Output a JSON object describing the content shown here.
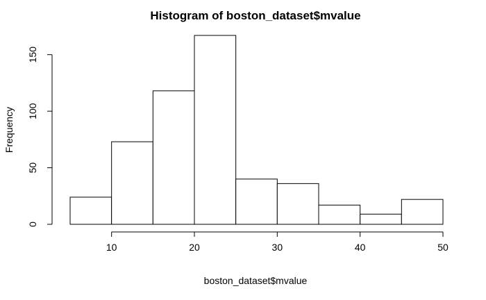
{
  "chart_data": {
    "type": "bar",
    "title": "Histogram of boston_dataset$mvalue",
    "xlabel": "boston_dataset$mvalue",
    "ylabel": "Frequency",
    "bins": [
      {
        "x0": 5,
        "x1": 10,
        "count": 24
      },
      {
        "x0": 10,
        "x1": 15,
        "count": 73
      },
      {
        "x0": 15,
        "x1": 20,
        "count": 118
      },
      {
        "x0": 20,
        "x1": 25,
        "count": 167
      },
      {
        "x0": 25,
        "x1": 30,
        "count": 40
      },
      {
        "x0": 30,
        "x1": 35,
        "count": 36
      },
      {
        "x0": 35,
        "x1": 40,
        "count": 17
      },
      {
        "x0": 40,
        "x1": 45,
        "count": 9
      },
      {
        "x0": 45,
        "x1": 50,
        "count": 22
      }
    ],
    "xticks": [
      "10",
      "20",
      "30",
      "40",
      "50"
    ],
    "yticks": [
      "0",
      "50",
      "100",
      "150"
    ],
    "xlim": [
      5,
      50
    ],
    "ylim": [
      0,
      167
    ],
    "grid": false,
    "legend": "none"
  }
}
